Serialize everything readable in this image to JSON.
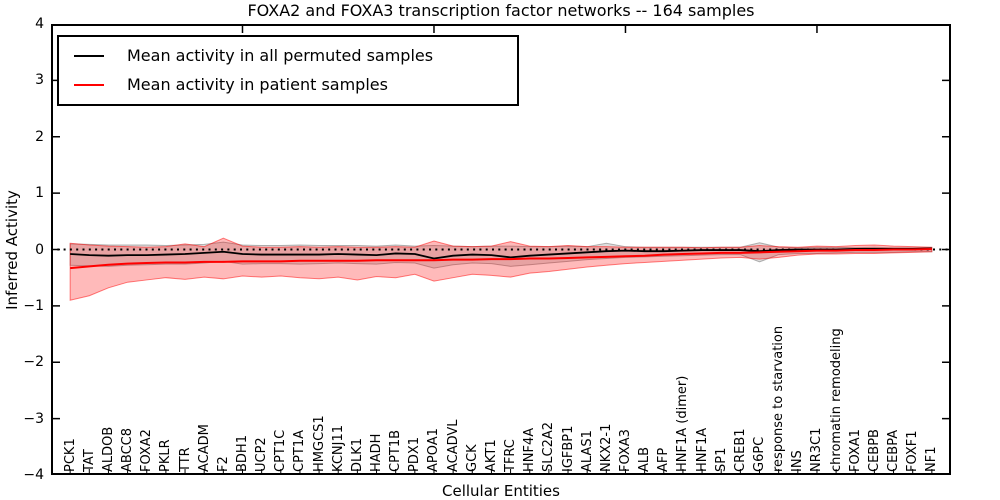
{
  "figure": {
    "title": "FOXA2 and FOXA3 transcription factor networks -- 164 samples",
    "xlabel": "Cellular Entities",
    "ylabel": "Inferred Activity"
  },
  "legend": {
    "items": [
      {
        "label": "Mean activity in all permuted samples",
        "color": "#000000"
      },
      {
        "label": "Mean activity in patient samples",
        "color": "#ff0000"
      }
    ]
  },
  "axis": {
    "ytick_labels": [
      "4",
      "3",
      "2",
      "1",
      "0",
      "−1",
      "−2",
      "−3",
      "−4"
    ],
    "ytick_values": [
      4,
      3,
      2,
      1,
      0,
      -1,
      -2,
      -3,
      -4
    ]
  },
  "chart_data": {
    "type": "line",
    "title": "FOXA2 and FOXA3 transcription factor networks -- 164 samples",
    "xlabel": "Cellular Entities",
    "ylabel": "Inferred Activity",
    "ylim": [
      -4,
      4
    ],
    "x_units_total": 47,
    "grid": false,
    "categories": [
      "PCK1",
      "TAT",
      "ALDOB",
      "ABCC8",
      "FOXA2",
      "PKLR",
      "TTR",
      "ACADM",
      "F2",
      "BDH1",
      "UCP2",
      "CPT1C",
      "CPT1A",
      "HMGCS1",
      "KCNJ11",
      "DLK1",
      "HADH",
      "CPT1B",
      "PDX1",
      "APOA1",
      "ACADVL",
      "GCK",
      "AKT1",
      "TFRC",
      "HNF4A",
      "SLC2A2",
      "IGFBP1",
      "ALAS1",
      "NKX2-1",
      "FOXA3",
      "ALB",
      "AFP",
      "HNF1A (dimer)",
      "HNF1A",
      "SP1",
      "CREB1",
      "G6PC",
      "response to starvation",
      "INS",
      "NR3C1",
      "chromatin remodeling",
      "FOXA1",
      "CEBPB",
      "CEBPA",
      "FOXF1",
      "NF1"
    ],
    "series": [
      {
        "name": "Mean activity in all permuted samples",
        "color": "#000000",
        "width": 1.8,
        "values": [
          -0.08,
          -0.1,
          -0.11,
          -0.1,
          -0.1,
          -0.09,
          -0.08,
          -0.06,
          -0.04,
          -0.08,
          -0.09,
          -0.09,
          -0.09,
          -0.09,
          -0.08,
          -0.09,
          -0.1,
          -0.07,
          -0.08,
          -0.16,
          -0.11,
          -0.09,
          -0.1,
          -0.14,
          -0.11,
          -0.09,
          -0.07,
          -0.05,
          -0.03,
          -0.02,
          -0.03,
          -0.03,
          -0.02,
          -0.01,
          -0.01,
          -0.01,
          -0.03,
          -0.01,
          0.0,
          0.0,
          0.0,
          0.01,
          0.01,
          0.01,
          0.01,
          0.02
        ]
      },
      {
        "name": "Mean activity in patient samples",
        "color": "#ff0000",
        "width": 2,
        "values": [
          -0.33,
          -0.3,
          -0.27,
          -0.25,
          -0.24,
          -0.23,
          -0.23,
          -0.22,
          -0.22,
          -0.21,
          -0.21,
          -0.21,
          -0.2,
          -0.2,
          -0.2,
          -0.2,
          -0.19,
          -0.19,
          -0.19,
          -0.19,
          -0.18,
          -0.18,
          -0.17,
          -0.17,
          -0.16,
          -0.16,
          -0.15,
          -0.14,
          -0.13,
          -0.12,
          -0.11,
          -0.09,
          -0.08,
          -0.07,
          -0.06,
          -0.06,
          -0.05,
          -0.04,
          -0.03,
          -0.02,
          -0.02,
          -0.01,
          -0.01,
          0.0,
          0.0,
          0.01
        ]
      }
    ],
    "bands": [
      {
        "name": "permuted-confidence-band",
        "fill": "rgba(0,0,0,0.13)",
        "stroke": "rgba(90,90,90,0.45)",
        "upper": [
          0.1,
          0.09,
          0.08,
          0.08,
          0.08,
          0.07,
          0.08,
          0.09,
          0.13,
          0.08,
          0.07,
          0.07,
          0.08,
          0.07,
          0.07,
          0.07,
          0.06,
          0.08,
          0.06,
          0.07,
          0.06,
          0.05,
          0.06,
          0.06,
          0.05,
          0.05,
          0.06,
          0.05,
          0.11,
          0.05,
          0.04,
          0.04,
          0.04,
          0.04,
          0.04,
          0.04,
          0.12,
          0.04,
          0.03,
          0.04,
          0.04,
          0.03,
          0.04,
          0.03,
          0.03,
          0.03
        ],
        "lower": [
          -0.28,
          -0.29,
          -0.3,
          -0.28,
          -0.27,
          -0.26,
          -0.26,
          -0.24,
          -0.21,
          -0.26,
          -0.25,
          -0.25,
          -0.26,
          -0.25,
          -0.24,
          -0.25,
          -0.26,
          -0.23,
          -0.24,
          -0.33,
          -0.27,
          -0.24,
          -0.25,
          -0.3,
          -0.27,
          -0.24,
          -0.21,
          -0.18,
          -0.16,
          -0.14,
          -0.13,
          -0.12,
          -0.11,
          -0.1,
          -0.09,
          -0.09,
          -0.22,
          -0.09,
          -0.07,
          -0.07,
          -0.06,
          -0.05,
          -0.05,
          -0.05,
          -0.04,
          -0.04
        ]
      },
      {
        "name": "patient-confidence-band",
        "fill": "rgba(255,0,0,0.27)",
        "stroke": "rgba(255,0,0,0.5)",
        "upper": [
          0.11,
          0.08,
          0.06,
          0.05,
          0.04,
          0.05,
          0.1,
          0.05,
          0.2,
          0.06,
          0.04,
          0.04,
          0.05,
          0.04,
          0.05,
          0.04,
          0.04,
          0.05,
          0.04,
          0.15,
          0.06,
          0.05,
          0.06,
          0.14,
          0.06,
          0.05,
          0.07,
          0.05,
          0.05,
          0.04,
          0.04,
          0.04,
          0.04,
          0.03,
          0.04,
          0.04,
          0.07,
          0.05,
          0.04,
          0.06,
          0.05,
          0.07,
          0.08,
          0.06,
          0.05,
          0.04
        ],
        "lower": [
          -0.9,
          -0.82,
          -0.68,
          -0.58,
          -0.54,
          -0.5,
          -0.53,
          -0.49,
          -0.52,
          -0.47,
          -0.49,
          -0.47,
          -0.5,
          -0.52,
          -0.49,
          -0.54,
          -0.48,
          -0.5,
          -0.44,
          -0.56,
          -0.5,
          -0.44,
          -0.46,
          -0.49,
          -0.42,
          -0.39,
          -0.35,
          -0.31,
          -0.28,
          -0.25,
          -0.23,
          -0.21,
          -0.19,
          -0.17,
          -0.15,
          -0.14,
          -0.17,
          -0.14,
          -0.1,
          -0.08,
          -0.08,
          -0.07,
          -0.07,
          -0.06,
          -0.05,
          -0.04
        ]
      }
    ],
    "reference_line": {
      "y": 0,
      "style": "dotted",
      "color": "#000000"
    },
    "layout": {
      "legend_position": "upper left",
      "top_ticks": [
        10,
        20,
        30,
        40
      ]
    }
  }
}
